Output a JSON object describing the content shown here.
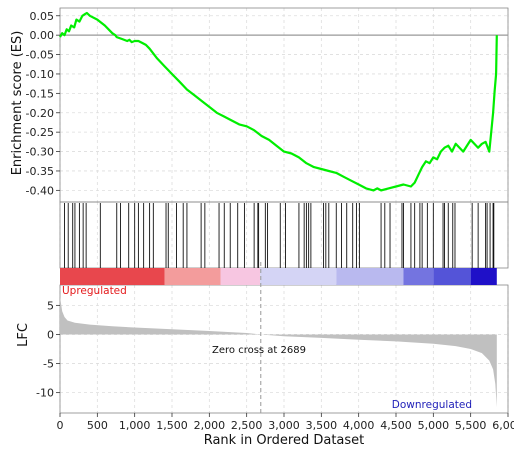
{
  "chart_data": {
    "type": "line",
    "title": "",
    "xlabel": "Rank in Ordered Dataset",
    "xlim": [
      0,
      6000
    ],
    "x_ticks": [
      0,
      500,
      1000,
      1500,
      2000,
      2500,
      3000,
      3500,
      4000,
      4500,
      5000,
      5500,
      6000
    ],
    "x_tick_labels": [
      "0",
      "500",
      "1,000",
      "1,500",
      "2,000",
      "2,500",
      "3,000",
      "3,500",
      "4,000",
      "4,500",
      "5,000",
      "5,500",
      "6,000"
    ],
    "grid": true,
    "es_panel": {
      "ylabel": "Enrichment score (ES)",
      "ylim": [
        -0.43,
        0.07
      ],
      "y_ticks": [
        0.05,
        0.0,
        -0.05,
        -0.1,
        -0.15,
        -0.2,
        -0.25,
        -0.3,
        -0.35,
        -0.4
      ],
      "y_tick_labels": [
        "0.05",
        "0.00",
        "-0.05",
        "-0.10",
        "-0.15",
        "-0.20",
        "-0.25",
        "-0.30",
        "-0.35",
        "-0.40"
      ],
      "line_color": "#00ee00",
      "zero_line_color": "#999999",
      "x": [
        0,
        30,
        60,
        90,
        120,
        150,
        190,
        220,
        260,
        300,
        340,
        360,
        400,
        500,
        600,
        700,
        740,
        760,
        830,
        900,
        930,
        960,
        1000,
        1050,
        1100,
        1150,
        1200,
        1300,
        1400,
        1500,
        1600,
        1700,
        1800,
        1900,
        2000,
        2100,
        2200,
        2300,
        2400,
        2500,
        2600,
        2700,
        2800,
        2900,
        3000,
        3100,
        3200,
        3300,
        3400,
        3500,
        3600,
        3700,
        3800,
        3900,
        4000,
        4100,
        4200,
        4250,
        4300,
        4400,
        4500,
        4600,
        4700,
        4750,
        4800,
        4850,
        4900,
        4950,
        5000,
        5050,
        5100,
        5150,
        5200,
        5250,
        5300,
        5400,
        5500,
        5600,
        5650,
        5700,
        5750,
        5780,
        5800,
        5820,
        5840,
        5850
      ],
      "y": [
        -0.005,
        0.005,
        0.0,
        0.015,
        0.01,
        0.025,
        0.02,
        0.04,
        0.035,
        0.05,
        0.055,
        0.057,
        0.05,
        0.04,
        0.025,
        0.005,
        0.0,
        -0.005,
        -0.01,
        -0.015,
        -0.012,
        -0.018,
        -0.015,
        -0.015,
        -0.02,
        -0.025,
        -0.035,
        -0.06,
        -0.08,
        -0.1,
        -0.12,
        -0.14,
        -0.155,
        -0.17,
        -0.185,
        -0.2,
        -0.21,
        -0.22,
        -0.23,
        -0.235,
        -0.245,
        -0.26,
        -0.27,
        -0.285,
        -0.3,
        -0.305,
        -0.315,
        -0.33,
        -0.34,
        -0.345,
        -0.35,
        -0.355,
        -0.365,
        -0.375,
        -0.385,
        -0.395,
        -0.4,
        -0.395,
        -0.4,
        -0.395,
        -0.39,
        -0.385,
        -0.39,
        -0.38,
        -0.36,
        -0.34,
        -0.325,
        -0.33,
        -0.315,
        -0.32,
        -0.3,
        -0.29,
        -0.285,
        -0.3,
        -0.28,
        -0.3,
        -0.27,
        -0.29,
        -0.28,
        -0.275,
        -0.3,
        -0.24,
        -0.2,
        -0.145,
        -0.1,
        0.0
      ]
    },
    "hits_panel": {
      "x": [
        60,
        110,
        170,
        200,
        260,
        310,
        350,
        540,
        760,
        810,
        920,
        1000,
        1050,
        1120,
        1200,
        1250,
        1420,
        1450,
        1560,
        1650,
        1700,
        1890,
        1940,
        2130,
        2200,
        2280,
        2380,
        2470,
        2600,
        2650,
        2660,
        2750,
        2780,
        2950,
        3020,
        3200,
        3270,
        3300,
        3330,
        3360,
        3530,
        3560,
        3600,
        3700,
        3770,
        3840,
        3920,
        3970,
        4010,
        4300,
        4350,
        4420,
        4580,
        4600,
        4700,
        4750,
        4820,
        4850,
        4920,
        5000,
        5130,
        5150,
        5200,
        5260,
        5290,
        5520,
        5600,
        5700,
        5720,
        5760,
        5800,
        5810
      ]
    },
    "rank_colorbar": {
      "blocks": [
        {
          "from": 0,
          "to": 1400,
          "color": "#e8474d"
        },
        {
          "from": 1400,
          "to": 2150,
          "color": "#f39c9c"
        },
        {
          "from": 2150,
          "to": 2680,
          "color": "#f7c6e1"
        },
        {
          "from": 2680,
          "to": 3700,
          "color": "#d4d4f5"
        },
        {
          "from": 3700,
          "to": 4600,
          "color": "#b9b9ef"
        },
        {
          "from": 4600,
          "to": 5000,
          "color": "#7474e0"
        },
        {
          "from": 5000,
          "to": 5500,
          "color": "#5454d8"
        },
        {
          "from": 5500,
          "to": 5850,
          "color": "#1f10c8"
        }
      ],
      "upregulated_label": "Upregulated",
      "downregulated_label": "Downregulated",
      "upregulated_color": "#e41a1c",
      "downregulated_color": "#1f1fb8"
    },
    "lfc_panel": {
      "ylabel": "LFC",
      "ylim": [
        -13.5,
        8.5
      ],
      "y_ticks": [
        5,
        0,
        -5,
        -10
      ],
      "y_tick_labels": [
        "5",
        "0",
        "-5",
        "-10"
      ],
      "fill_color": "#c0c0c0",
      "x": [
        0,
        30,
        60,
        100,
        200,
        400,
        700,
        1000,
        1500,
        2000,
        2500,
        2689,
        3000,
        3500,
        4000,
        4500,
        5000,
        5300,
        5500,
        5650,
        5750,
        5800,
        5830,
        5850
      ],
      "y": [
        6.5,
        4.0,
        3.0,
        2.4,
        2.0,
        1.7,
        1.4,
        1.2,
        0.9,
        0.6,
        0.25,
        0.0,
        -0.3,
        -0.6,
        -0.9,
        -1.2,
        -1.6,
        -2.0,
        -2.5,
        -3.2,
        -4.5,
        -6.0,
        -8.5,
        -12.5
      ],
      "zero_cross": 2689,
      "zero_cross_label": "Zero cross at 2689"
    }
  }
}
